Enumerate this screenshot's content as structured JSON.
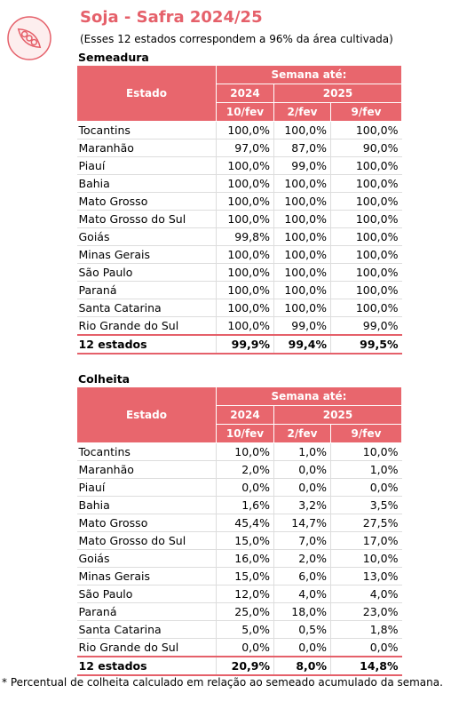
{
  "header": {
    "title": "Soja - Safra 2024/25",
    "subtitle": "(Esses 12 estados correspondem a 96% da área cultivada)"
  },
  "tables": [
    {
      "title": "Semeadura",
      "state_header": "Estado",
      "week_header": "Semana até:",
      "years": [
        "2024",
        "2025"
      ],
      "dates": [
        "10/fev",
        "2/fev",
        "9/fev"
      ],
      "rows": [
        [
          "Tocantins",
          "100,0%",
          "100,0%",
          "100,0%"
        ],
        [
          "Maranhão",
          "97,0%",
          "87,0%",
          "90,0%"
        ],
        [
          "Piauí",
          "100,0%",
          "99,0%",
          "100,0%"
        ],
        [
          "Bahia",
          "100,0%",
          "100,0%",
          "100,0%"
        ],
        [
          "Mato Grosso",
          "100,0%",
          "100,0%",
          "100,0%"
        ],
        [
          "Mato Grosso do Sul",
          "100,0%",
          "100,0%",
          "100,0%"
        ],
        [
          "Goiás",
          "99,8%",
          "100,0%",
          "100,0%"
        ],
        [
          "Minas Gerais",
          "100,0%",
          "100,0%",
          "100,0%"
        ],
        [
          "São Paulo",
          "100,0%",
          "100,0%",
          "100,0%"
        ],
        [
          "Paraná",
          "100,0%",
          "100,0%",
          "100,0%"
        ],
        [
          "Santa Catarina",
          "100,0%",
          "100,0%",
          "100,0%"
        ],
        [
          "Rio Grande do Sul",
          "100,0%",
          "99,0%",
          "99,0%"
        ]
      ],
      "total": [
        "12 estados",
        "99,9%",
        "99,4%",
        "99,5%"
      ]
    },
    {
      "title": "Colheita",
      "state_header": "Estado",
      "week_header": "Semana até:",
      "years": [
        "2024",
        "2025"
      ],
      "dates": [
        "10/fev",
        "2/fev",
        "9/fev"
      ],
      "rows": [
        [
          "Tocantins",
          "10,0%",
          "1,0%",
          "10,0%"
        ],
        [
          "Maranhão",
          "2,0%",
          "0,0%",
          "1,0%"
        ],
        [
          "Piauí",
          "0,0%",
          "0,0%",
          "0,0%"
        ],
        [
          "Bahia",
          "1,6%",
          "3,2%",
          "3,5%"
        ],
        [
          "Mato Grosso",
          "45,4%",
          "14,7%",
          "27,5%"
        ],
        [
          "Mato Grosso do Sul",
          "15,0%",
          "7,0%",
          "17,0%"
        ],
        [
          "Goiás",
          "16,0%",
          "2,0%",
          "10,0%"
        ],
        [
          "Minas Gerais",
          "15,0%",
          "6,0%",
          "13,0%"
        ],
        [
          "São Paulo",
          "12,0%",
          "4,0%",
          "4,0%"
        ],
        [
          "Paraná",
          "25,0%",
          "18,0%",
          "23,0%"
        ],
        [
          "Santa Catarina",
          "5,0%",
          "0,5%",
          "1,8%"
        ],
        [
          "Rio Grande do Sul",
          "0,0%",
          "0,0%",
          "0,0%"
        ]
      ],
      "total": [
        "12 estados",
        "20,9%",
        "8,0%",
        "14,8%"
      ]
    }
  ],
  "footnote": "* Percentual de colheita calculado em relação ao semeado acumulado da semana."
}
